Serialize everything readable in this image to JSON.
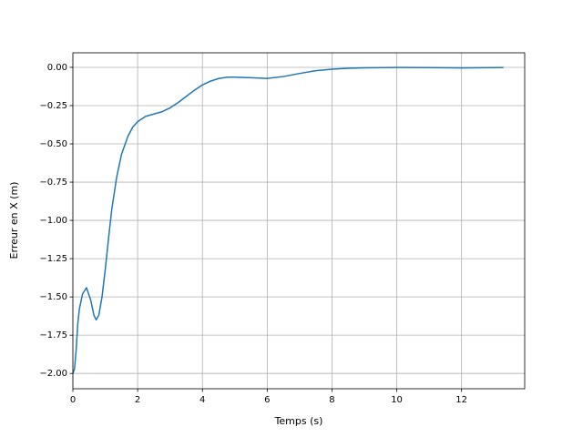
{
  "chart_data": {
    "type": "line",
    "xlabel": "Temps (s)",
    "ylabel": "Erreur en X (m)",
    "x": [
      0,
      0.05,
      0.1,
      0.15,
      0.2,
      0.3,
      0.42,
      0.55,
      0.65,
      0.72,
      0.8,
      0.9,
      1.0,
      1.1,
      1.2,
      1.35,
      1.5,
      1.7,
      1.85,
      2.0,
      2.25,
      2.5,
      2.75,
      3.0,
      3.25,
      3.5,
      3.75,
      4.0,
      4.25,
      4.5,
      4.75,
      5.0,
      5.5,
      6.0,
      6.5,
      7.0,
      7.5,
      8.0,
      8.5,
      9.0,
      10.0,
      11.0,
      12.0,
      13.28
    ],
    "values": [
      -2.0,
      -1.97,
      -1.85,
      -1.68,
      -1.58,
      -1.48,
      -1.44,
      -1.52,
      -1.62,
      -1.65,
      -1.62,
      -1.5,
      -1.32,
      -1.12,
      -0.93,
      -0.72,
      -0.57,
      -0.45,
      -0.39,
      -0.355,
      -0.32,
      -0.305,
      -0.29,
      -0.265,
      -0.23,
      -0.19,
      -0.15,
      -0.115,
      -0.09,
      -0.073,
      -0.065,
      -0.064,
      -0.068,
      -0.072,
      -0.06,
      -0.04,
      -0.022,
      -0.012,
      -0.006,
      -0.003,
      -0.001,
      -0.002,
      -0.004,
      -0.001
    ],
    "color": "#1f77b4",
    "xlim": [
      0,
      13.95
    ],
    "xticks": [
      0,
      2,
      4,
      6,
      8,
      10,
      12
    ],
    "ylim": [
      -2.1,
      0.095
    ],
    "yticks": [
      {
        "value": 0,
        "label": "0.00"
      },
      {
        "value": -0.25,
        "label": "−0.25"
      },
      {
        "value": -0.5,
        "label": "−0.50"
      },
      {
        "value": -0.75,
        "label": "−0.75"
      },
      {
        "value": -1.0,
        "label": "−1.00"
      },
      {
        "value": -1.25,
        "label": "−1.25"
      },
      {
        "value": -1.5,
        "label": "−1.50"
      },
      {
        "value": -1.75,
        "label": "−1.75"
      },
      {
        "value": -2.0,
        "label": "−2.00"
      }
    ],
    "grid": true
  }
}
